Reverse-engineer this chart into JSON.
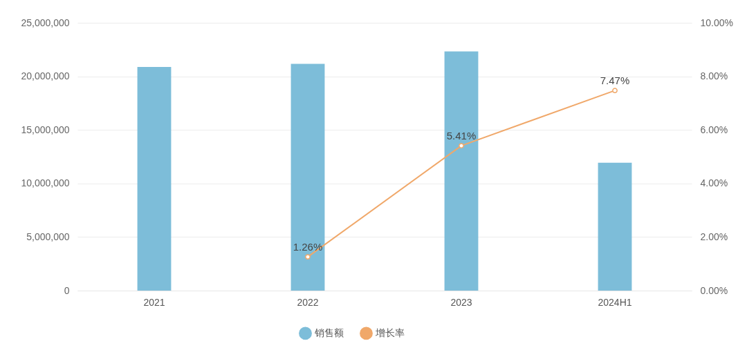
{
  "chart_data": {
    "type": "bar",
    "categories": [
      "2021",
      "2022",
      "2023",
      "2024H1"
    ],
    "series": [
      {
        "name": "销售额",
        "color": "#7dbdd9",
        "values": [
          20880000,
          21170000,
          22330000,
          11940000
        ]
      },
      {
        "name": "增长率",
        "type": "line",
        "axis": "y2",
        "color": "#f0a86a",
        "values": [
          null,
          1.26,
          5.41,
          7.47
        ],
        "value_labels": [
          null,
          "1.26%",
          "5.41%",
          "7.47%"
        ]
      }
    ],
    "ylim": [
      0,
      25000000
    ],
    "yticks": [
      {
        "value": 0,
        "label": "0"
      },
      {
        "value": 5000000,
        "label": "5,000,000"
      },
      {
        "value": 10000000,
        "label": "10,000,000"
      },
      {
        "value": 15000000,
        "label": "15,000,000"
      },
      {
        "value": 20000000,
        "label": "20,000,000"
      },
      {
        "value": 25000000,
        "label": "25,000,000"
      }
    ],
    "y2lim": [
      0,
      10
    ],
    "y2ticks": [
      {
        "value": 0,
        "label": "0.00%"
      },
      {
        "value": 2,
        "label": "2.00%"
      },
      {
        "value": 4,
        "label": "4.00%"
      },
      {
        "value": 6,
        "label": "6.00%"
      },
      {
        "value": 8,
        "label": "8.00%"
      },
      {
        "value": 10,
        "label": "10.00%"
      }
    ],
    "grid": "y",
    "legend": "bottom",
    "marker": "circle",
    "line_style": "solid"
  }
}
